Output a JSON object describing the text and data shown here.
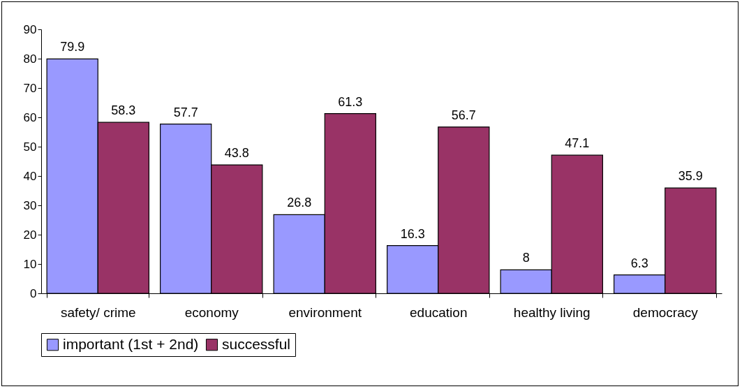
{
  "chart_data": {
    "type": "bar",
    "categories": [
      "safety/ crime",
      "economy",
      "environment",
      "education",
      "healthy living",
      "democracy"
    ],
    "series": [
      {
        "name": "important (1st + 2nd)",
        "color": "#9999ff",
        "values": [
          79.9,
          57.7,
          26.8,
          16.3,
          8,
          6.3
        ]
      },
      {
        "name": "successful",
        "color": "#993366",
        "values": [
          58.3,
          43.8,
          61.3,
          56.7,
          47.1,
          35.9
        ]
      }
    ],
    "ylim": [
      0,
      90
    ],
    "yticks": [
      0,
      10,
      20,
      30,
      40,
      50,
      60,
      70,
      80,
      90
    ],
    "grid": false,
    "legend": "bottom",
    "data_labels": true
  }
}
